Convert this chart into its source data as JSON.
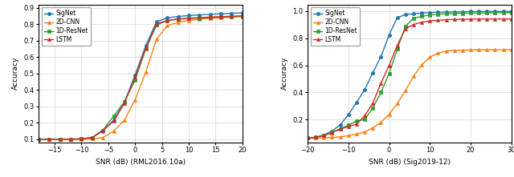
{
  "plot1": {
    "xlabel": "SNR (dB) (RML2016.10a)",
    "ylabel": "Accuracy",
    "xlim": [
      -18,
      20
    ],
    "ylim": [
      0.08,
      0.92
    ],
    "xticks": [
      -15,
      -10,
      -5,
      0,
      5,
      10,
      15,
      20
    ],
    "yticks": [
      0.1,
      0.2,
      0.3,
      0.4,
      0.5,
      0.6,
      0.7,
      0.8,
      0.9
    ],
    "snr": [
      -18,
      -16,
      -14,
      -12,
      -10,
      -8,
      -6,
      -4,
      -2,
      0,
      2,
      4,
      6,
      8,
      10,
      12,
      14,
      16,
      18,
      20
    ],
    "SigNet": [
      0.1,
      0.1,
      0.1,
      0.1,
      0.102,
      0.11,
      0.15,
      0.215,
      0.325,
      0.49,
      0.67,
      0.815,
      0.838,
      0.847,
      0.852,
      0.856,
      0.86,
      0.863,
      0.866,
      0.869
    ],
    "2D-CNN": [
      0.1,
      0.1,
      0.1,
      0.1,
      0.1,
      0.102,
      0.11,
      0.15,
      0.215,
      0.34,
      0.51,
      0.71,
      0.79,
      0.812,
      0.822,
      0.83,
      0.835,
      0.839,
      0.843,
      0.846
    ],
    "1D-ResNet": [
      0.1,
      0.1,
      0.1,
      0.1,
      0.102,
      0.11,
      0.155,
      0.24,
      0.328,
      0.46,
      0.65,
      0.795,
      0.822,
      0.83,
      0.834,
      0.837,
      0.84,
      0.843,
      0.845,
      0.848
    ],
    "LSTM": [
      0.1,
      0.1,
      0.1,
      0.1,
      0.102,
      0.11,
      0.155,
      0.21,
      0.318,
      0.478,
      0.655,
      0.802,
      0.822,
      0.832,
      0.836,
      0.84,
      0.843,
      0.846,
      0.848,
      0.851
    ]
  },
  "plot2": {
    "xlabel": "SNR (dB) (Sig2019-12)",
    "ylabel": "Accuracy",
    "xlim": [
      -20,
      30
    ],
    "ylim": [
      0.03,
      1.05
    ],
    "xticks": [
      -20,
      -10,
      0,
      10,
      20,
      30
    ],
    "yticks": [
      0.2,
      0.4,
      0.6,
      0.8,
      1.0
    ],
    "snr": [
      -20,
      -18,
      -16,
      -14,
      -12,
      -10,
      -8,
      -6,
      -4,
      -2,
      0,
      2,
      4,
      6,
      8,
      10,
      12,
      14,
      16,
      18,
      20,
      22,
      24,
      26,
      28,
      30
    ],
    "SigNet": [
      0.062,
      0.07,
      0.085,
      0.115,
      0.16,
      0.235,
      0.325,
      0.42,
      0.545,
      0.665,
      0.825,
      0.952,
      0.975,
      0.982,
      0.986,
      0.99,
      0.992,
      0.994,
      0.995,
      0.996,
      0.997,
      0.997,
      0.998,
      0.998,
      0.998,
      0.998
    ],
    "2D-CNN": [
      0.062,
      0.062,
      0.065,
      0.068,
      0.072,
      0.08,
      0.092,
      0.108,
      0.138,
      0.18,
      0.238,
      0.318,
      0.415,
      0.52,
      0.605,
      0.66,
      0.69,
      0.705,
      0.71,
      0.712,
      0.714,
      0.715,
      0.715,
      0.715,
      0.716,
      0.716
    ],
    "1D-ResNet": [
      0.062,
      0.068,
      0.08,
      0.105,
      0.132,
      0.158,
      0.188,
      0.2,
      0.285,
      0.4,
      0.54,
      0.72,
      0.89,
      0.948,
      0.962,
      0.972,
      0.977,
      0.981,
      0.983,
      0.985,
      0.986,
      0.987,
      0.988,
      0.989,
      0.989,
      0.99
    ],
    "LSTM": [
      0.062,
      0.068,
      0.08,
      0.103,
      0.128,
      0.148,
      0.165,
      0.228,
      0.32,
      0.468,
      0.6,
      0.748,
      0.87,
      0.902,
      0.918,
      0.928,
      0.933,
      0.937,
      0.939,
      0.94,
      0.941,
      0.942,
      0.942,
      0.942,
      0.942,
      0.942
    ]
  },
  "colors": {
    "SigNet": "#1f77b4",
    "2D-CNN": "#ff7f0e",
    "1D-ResNet": "#2ca02c",
    "LSTM": "#d62728"
  },
  "markers": {
    "SigNet": "o",
    "2D-CNN": "^",
    "1D-ResNet": "s",
    "LSTM": "^"
  },
  "markersize": 3.0,
  "linewidth": 1.0
}
